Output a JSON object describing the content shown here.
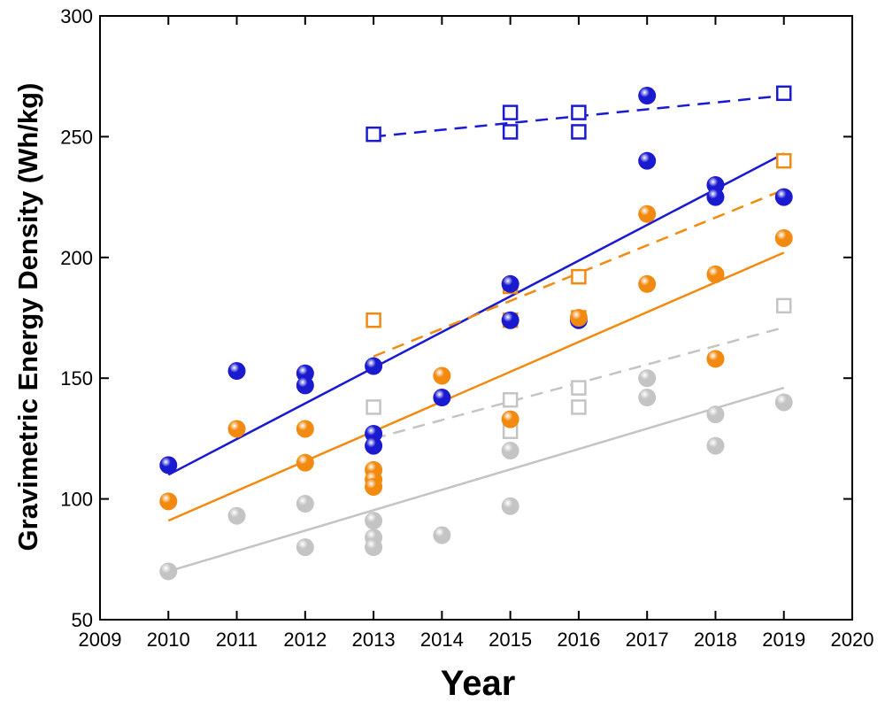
{
  "chart_data": {
    "type": "scatter",
    "xlabel": "Year",
    "ylabel": "Gravimetric Energy Density (Wh/kg)",
    "xlim": [
      2009,
      2020
    ],
    "ylim": [
      50,
      300
    ],
    "xticks": [
      2009,
      2010,
      2011,
      2012,
      2013,
      2014,
      2015,
      2016,
      2017,
      2018,
      2019,
      2020
    ],
    "yticks": [
      50,
      100,
      150,
      200,
      250,
      300
    ],
    "xtick_labels": [
      "2009",
      "2010",
      "2011",
      "2012",
      "2013",
      "2014",
      "2015",
      "2016",
      "2017",
      "2018",
      "2019",
      "2020"
    ],
    "ytick_labels": [
      "50",
      "100",
      "150",
      "200",
      "250",
      "300"
    ],
    "grid": false,
    "legend": "none",
    "colors": {
      "blue": "#1a1ad0",
      "orange": "#f28a10",
      "gray": "#c4c4c4",
      "axis": "#000000"
    },
    "series": [
      {
        "name": "blue-circles",
        "marker": "circle",
        "color": "blue",
        "points": [
          [
            2010,
            114
          ],
          [
            2011,
            153
          ],
          [
            2012,
            152
          ],
          [
            2012,
            147
          ],
          [
            2013,
            155
          ],
          [
            2013,
            127
          ],
          [
            2013,
            122
          ],
          [
            2014,
            142
          ],
          [
            2015,
            189
          ],
          [
            2015,
            174
          ],
          [
            2016,
            174
          ],
          [
            2017,
            267
          ],
          [
            2017,
            240
          ],
          [
            2018,
            230
          ],
          [
            2018,
            225
          ],
          [
            2019,
            225
          ]
        ]
      },
      {
        "name": "orange-circles",
        "marker": "circle",
        "color": "orange",
        "points": [
          [
            2010,
            99
          ],
          [
            2011,
            129
          ],
          [
            2012,
            129
          ],
          [
            2012,
            115
          ],
          [
            2013,
            112
          ],
          [
            2013,
            108
          ],
          [
            2013,
            105
          ],
          [
            2014,
            151
          ],
          [
            2015,
            133
          ],
          [
            2016,
            175
          ],
          [
            2017,
            218
          ],
          [
            2017,
            189
          ],
          [
            2018,
            193
          ],
          [
            2018,
            158
          ],
          [
            2019,
            208
          ]
        ]
      },
      {
        "name": "gray-circles",
        "marker": "circle",
        "color": "gray",
        "points": [
          [
            2010,
            70
          ],
          [
            2011,
            93
          ],
          [
            2012,
            98
          ],
          [
            2012,
            80
          ],
          [
            2013,
            91
          ],
          [
            2013,
            84
          ],
          [
            2013,
            80
          ],
          [
            2014,
            85
          ],
          [
            2015,
            120
          ],
          [
            2015,
            97
          ],
          [
            2017,
            150
          ],
          [
            2017,
            142
          ],
          [
            2018,
            135
          ],
          [
            2018,
            122
          ],
          [
            2019,
            140
          ]
        ]
      },
      {
        "name": "blue-squares",
        "marker": "square",
        "color": "blue",
        "points": [
          [
            2013,
            251
          ],
          [
            2015,
            260
          ],
          [
            2015,
            252
          ],
          [
            2016,
            260
          ],
          [
            2016,
            252
          ],
          [
            2019,
            268
          ]
        ]
      },
      {
        "name": "orange-squares",
        "marker": "square",
        "color": "orange",
        "points": [
          [
            2013,
            174
          ],
          [
            2015,
            188
          ],
          [
            2015,
            174
          ],
          [
            2016,
            192
          ],
          [
            2016,
            175
          ],
          [
            2019,
            240
          ]
        ]
      },
      {
        "name": "gray-squares",
        "marker": "square",
        "color": "gray",
        "points": [
          [
            2013,
            138
          ],
          [
            2015,
            141
          ],
          [
            2015,
            128
          ],
          [
            2016,
            146
          ],
          [
            2016,
            138
          ],
          [
            2019,
            180
          ]
        ]
      }
    ],
    "trendlines": [
      {
        "name": "blue-solid-fit",
        "color": "blue",
        "style": "solid",
        "from": [
          2010,
          110
        ],
        "to": [
          2019,
          243
        ]
      },
      {
        "name": "orange-solid-fit",
        "color": "orange",
        "style": "solid",
        "from": [
          2010,
          91
        ],
        "to": [
          2019,
          202
        ]
      },
      {
        "name": "gray-solid-fit",
        "color": "gray",
        "style": "solid",
        "from": [
          2010,
          70
        ],
        "to": [
          2019,
          146
        ]
      },
      {
        "name": "blue-dashed-fit",
        "color": "blue",
        "style": "dashed",
        "from": [
          2013,
          250
        ],
        "to": [
          2019,
          267
        ]
      },
      {
        "name": "orange-dashed-fit",
        "color": "orange",
        "style": "dashed",
        "from": [
          2013,
          159
        ],
        "to": [
          2019,
          228
        ]
      },
      {
        "name": "gray-dashed-fit",
        "color": "gray",
        "style": "dashed",
        "from": [
          2013,
          125
        ],
        "to": [
          2019,
          171
        ]
      }
    ]
  }
}
